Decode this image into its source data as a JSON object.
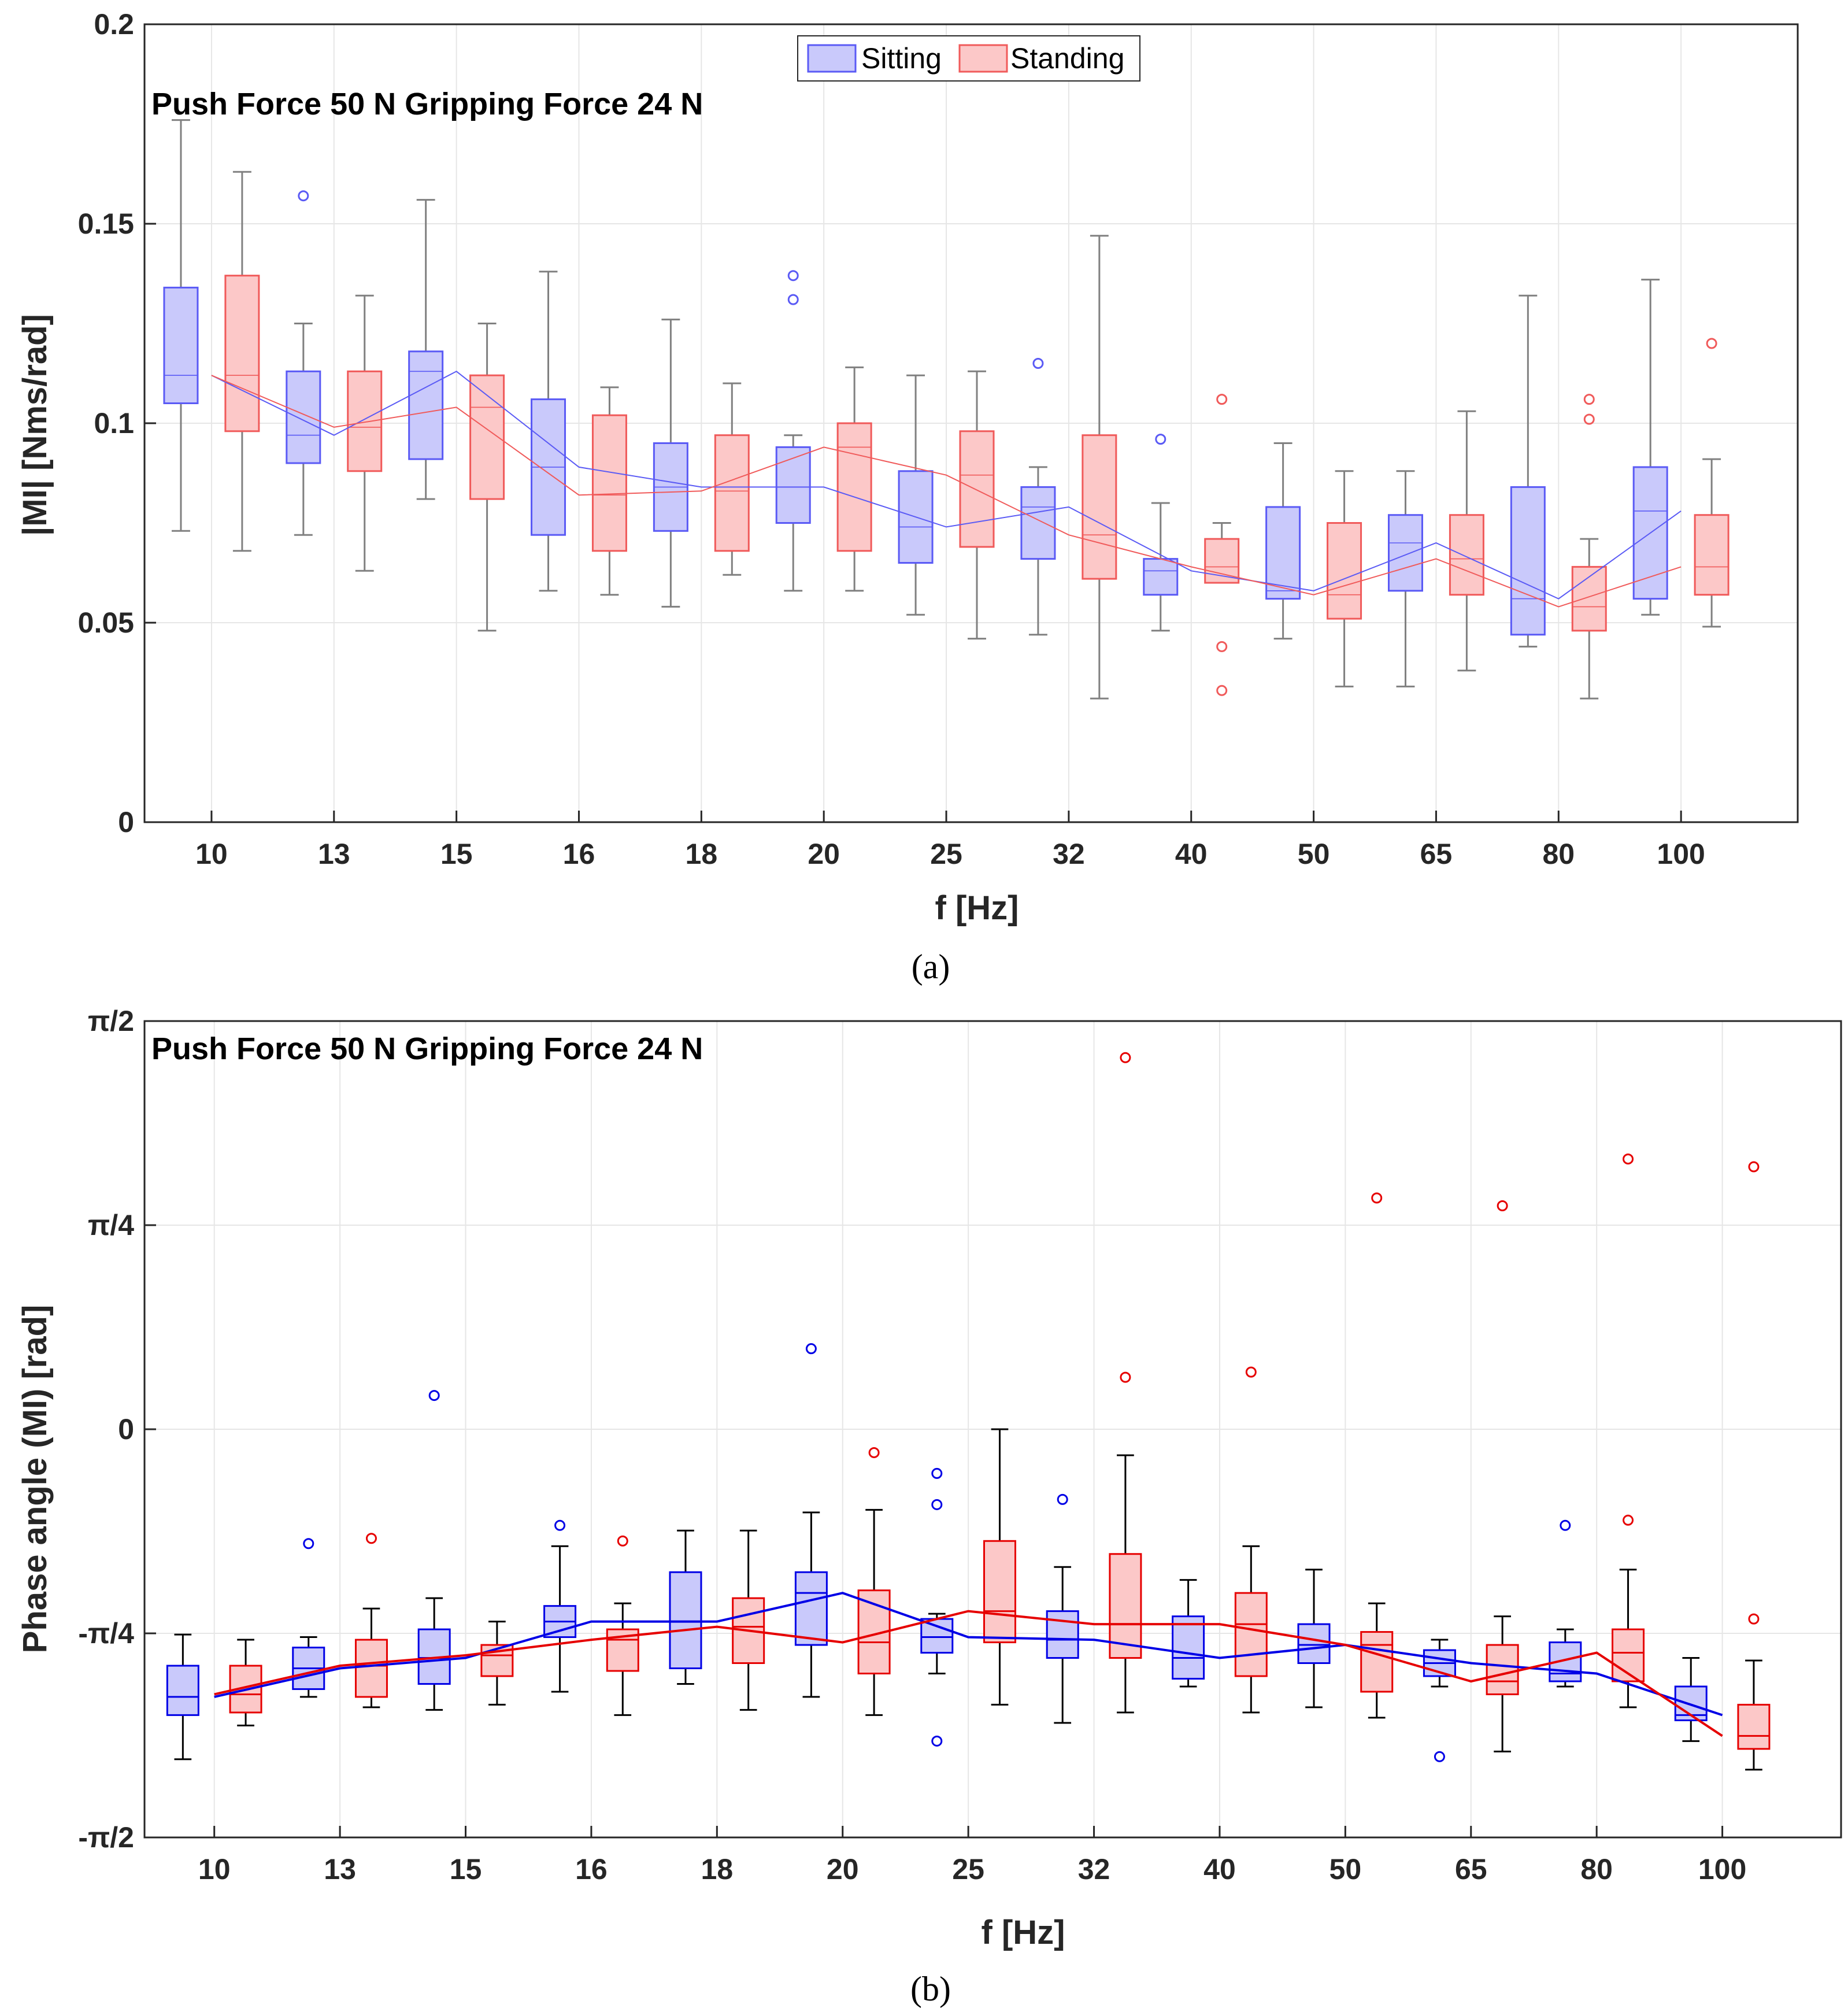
{
  "chart_data": [
    {
      "type": "box",
      "panel_caption": "(a)",
      "title": "Push Force 50 N Gripping Force 24 N",
      "xlabel": "f [Hz]",
      "ylabel": "|MI| [Nms/rad]",
      "ylim": [
        0,
        0.2
      ],
      "yticks": [
        0,
        0.05,
        0.1,
        0.15,
        0.2
      ],
      "ytick_labels": [
        "0",
        "0.05",
        "0.1",
        "0.15",
        "0.2"
      ],
      "categories": [
        "10",
        "13",
        "15",
        "16",
        "18",
        "20",
        "25",
        "32",
        "40",
        "50",
        "65",
        "80",
        "100"
      ],
      "grid": true,
      "legend": {
        "position": "top-center",
        "entries": [
          "Sitting",
          "Standing"
        ]
      },
      "series": [
        {
          "name": "Sitting",
          "color": "#5a5af5",
          "fill": "#c9c9fb",
          "whisker_color": "#808080",
          "boxes": [
            {
              "min": 0.073,
              "q1": 0.105,
              "median": 0.112,
              "q3": 0.134,
              "max": 0.176,
              "outliers": []
            },
            {
              "min": 0.072,
              "q1": 0.09,
              "median": 0.097,
              "q3": 0.113,
              "max": 0.125,
              "outliers": [
                0.157
              ]
            },
            {
              "min": 0.081,
              "q1": 0.091,
              "median": 0.113,
              "q3": 0.118,
              "max": 0.156,
              "outliers": []
            },
            {
              "min": 0.058,
              "q1": 0.072,
              "median": 0.089,
              "q3": 0.106,
              "max": 0.138,
              "outliers": []
            },
            {
              "min": 0.054,
              "q1": 0.073,
              "median": 0.084,
              "q3": 0.095,
              "max": 0.126,
              "outliers": []
            },
            {
              "min": 0.058,
              "q1": 0.075,
              "median": 0.084,
              "q3": 0.094,
              "max": 0.097,
              "outliers": [
                0.131,
                0.137
              ]
            },
            {
              "min": 0.052,
              "q1": 0.065,
              "median": 0.074,
              "q3": 0.088,
              "max": 0.112,
              "outliers": []
            },
            {
              "min": 0.047,
              "q1": 0.066,
              "median": 0.079,
              "q3": 0.084,
              "max": 0.089,
              "outliers": [
                0.115
              ]
            },
            {
              "min": 0.048,
              "q1": 0.057,
              "median": 0.063,
              "q3": 0.066,
              "max": 0.08,
              "outliers": [
                0.096
              ]
            },
            {
              "min": 0.046,
              "q1": 0.056,
              "median": 0.058,
              "q3": 0.079,
              "max": 0.095,
              "outliers": []
            },
            {
              "min": 0.034,
              "q1": 0.058,
              "median": 0.07,
              "q3": 0.077,
              "max": 0.088,
              "outliers": []
            },
            {
              "min": 0.044,
              "q1": 0.047,
              "median": 0.056,
              "q3": 0.084,
              "max": 0.132,
              "outliers": []
            },
            {
              "min": 0.052,
              "q1": 0.056,
              "median": 0.078,
              "q3": 0.089,
              "max": 0.136,
              "outliers": []
            }
          ]
        },
        {
          "name": "Standing",
          "color": "#f05a5a",
          "fill": "#fcc8c8",
          "whisker_color": "#808080",
          "boxes": [
            {
              "min": 0.068,
              "q1": 0.098,
              "median": 0.112,
              "q3": 0.137,
              "max": 0.163,
              "outliers": []
            },
            {
              "min": 0.063,
              "q1": 0.088,
              "median": 0.099,
              "q3": 0.113,
              "max": 0.132,
              "outliers": []
            },
            {
              "min": 0.048,
              "q1": 0.081,
              "median": 0.104,
              "q3": 0.112,
              "max": 0.125,
              "outliers": []
            },
            {
              "min": 0.057,
              "q1": 0.068,
              "median": 0.082,
              "q3": 0.102,
              "max": 0.109,
              "outliers": []
            },
            {
              "min": 0.062,
              "q1": 0.068,
              "median": 0.083,
              "q3": 0.097,
              "max": 0.11,
              "outliers": []
            },
            {
              "min": 0.058,
              "q1": 0.068,
              "median": 0.094,
              "q3": 0.1,
              "max": 0.114,
              "outliers": []
            },
            {
              "min": 0.046,
              "q1": 0.069,
              "median": 0.087,
              "q3": 0.098,
              "max": 0.113,
              "outliers": []
            },
            {
              "min": 0.031,
              "q1": 0.061,
              "median": 0.072,
              "q3": 0.097,
              "max": 0.147,
              "outliers": []
            },
            {
              "min": 0.06,
              "q1": 0.06,
              "median": 0.064,
              "q3": 0.071,
              "max": 0.075,
              "outliers": [
                0.106,
                0.044,
                0.033
              ]
            },
            {
              "min": 0.034,
              "q1": 0.051,
              "median": 0.057,
              "q3": 0.075,
              "max": 0.088,
              "outliers": []
            },
            {
              "min": 0.038,
              "q1": 0.057,
              "median": 0.066,
              "q3": 0.077,
              "max": 0.103,
              "outliers": []
            },
            {
              "min": 0.031,
              "q1": 0.048,
              "median": 0.054,
              "q3": 0.064,
              "max": 0.071,
              "outliers": [
                0.106,
                0.101
              ]
            },
            {
              "min": 0.049,
              "q1": 0.057,
              "median": 0.064,
              "q3": 0.077,
              "max": 0.091,
              "outliers": [
                0.12
              ]
            }
          ]
        }
      ]
    },
    {
      "type": "box",
      "panel_caption": "(b)",
      "title": "Push Force 50 N Gripping Force 24 N",
      "xlabel": "f [Hz]",
      "ylabel": "Phase angle (MI) [rad]",
      "ylim": [
        -1.5708,
        1.5708
      ],
      "yticks": [
        -1.5708,
        -0.7854,
        0,
        0.7854,
        1.5708
      ],
      "ytick_labels": [
        "-π/2",
        "-π/4",
        "0",
        "π/4",
        "π/2"
      ],
      "categories": [
        "10",
        "13",
        "15",
        "16",
        "18",
        "20",
        "25",
        "32",
        "40",
        "50",
        "65",
        "80",
        "100"
      ],
      "grid": true,
      "series": [
        {
          "name": "Sitting",
          "color": "#0000e6",
          "fill": "#c9c9fb",
          "whisker_color": "#000000",
          "boxes": [
            {
              "min": -1.27,
              "q1": -1.1,
              "median": -1.03,
              "q3": -0.91,
              "max": -0.79,
              "outliers": []
            },
            {
              "min": -1.03,
              "q1": -1.0,
              "median": -0.92,
              "q3": -0.84,
              "max": -0.8,
              "outliers": [
                -0.44
              ]
            },
            {
              "min": -1.08,
              "q1": -0.98,
              "median": -0.88,
              "q3": -0.77,
              "max": -0.65,
              "outliers": [
                0.13
              ]
            },
            {
              "min": -1.01,
              "q1": -0.8,
              "median": -0.74,
              "q3": -0.68,
              "max": -0.45,
              "outliers": [
                -0.37
              ]
            },
            {
              "min": -0.98,
              "q1": -0.92,
              "median": -0.74,
              "q3": -0.55,
              "max": -0.39,
              "outliers": []
            },
            {
              "min": -1.03,
              "q1": -0.83,
              "median": -0.63,
              "q3": -0.55,
              "max": -0.32,
              "outliers": [
                0.31
              ]
            },
            {
              "min": -0.94,
              "q1": -0.86,
              "median": -0.8,
              "q3": -0.73,
              "max": -0.71,
              "outliers": [
                -0.17,
                -0.29,
                -1.2
              ]
            },
            {
              "min": -1.13,
              "q1": -0.88,
              "median": -0.81,
              "q3": -0.7,
              "max": -0.53,
              "outliers": [
                -0.27
              ]
            },
            {
              "min": -0.99,
              "q1": -0.96,
              "median": -0.88,
              "q3": -0.72,
              "max": -0.58,
              "outliers": []
            },
            {
              "min": -1.07,
              "q1": -0.9,
              "median": -0.83,
              "q3": -0.75,
              "max": -0.54,
              "outliers": []
            },
            {
              "min": -0.99,
              "q1": -0.95,
              "median": -0.9,
              "q3": -0.85,
              "max": -0.81,
              "outliers": [
                -1.26
              ]
            },
            {
              "min": -0.99,
              "q1": -0.97,
              "median": -0.94,
              "q3": -0.82,
              "max": -0.77,
              "outliers": [
                -0.37
              ]
            },
            {
              "min": -1.2,
              "q1": -1.12,
              "median": -1.1,
              "q3": -0.99,
              "max": -0.88,
              "outliers": []
            }
          ]
        },
        {
          "name": "Standing",
          "color": "#e60000",
          "fill": "#fcc8c8",
          "whisker_color": "#000000",
          "boxes": [
            {
              "min": -1.14,
              "q1": -1.09,
              "median": -1.02,
              "q3": -0.91,
              "max": -0.81,
              "outliers": []
            },
            {
              "min": -1.07,
              "q1": -1.03,
              "median": -0.91,
              "q3": -0.81,
              "max": -0.69,
              "outliers": [
                -0.42
              ]
            },
            {
              "min": -1.06,
              "q1": -0.95,
              "median": -0.87,
              "q3": -0.83,
              "max": -0.74,
              "outliers": []
            },
            {
              "min": -1.1,
              "q1": -0.93,
              "median": -0.81,
              "q3": -0.77,
              "max": -0.67,
              "outliers": [
                -0.43
              ]
            },
            {
              "min": -1.08,
              "q1": -0.9,
              "median": -0.76,
              "q3": -0.65,
              "max": -0.39,
              "outliers": []
            },
            {
              "min": -1.1,
              "q1": -0.94,
              "median": -0.82,
              "q3": -0.62,
              "max": -0.31,
              "outliers": [
                -0.09
              ]
            },
            {
              "min": -1.06,
              "q1": -0.82,
              "median": -0.7,
              "q3": -0.43,
              "max": 0.0,
              "outliers": []
            },
            {
              "min": -1.09,
              "q1": -0.88,
              "median": -0.75,
              "q3": -0.48,
              "max": -0.1,
              "outliers": [
                1.43,
                0.2
              ]
            },
            {
              "min": -1.09,
              "q1": -0.95,
              "median": -0.75,
              "q3": -0.63,
              "max": -0.45,
              "outliers": [
                0.22
              ]
            },
            {
              "min": -1.11,
              "q1": -1.01,
              "median": -0.83,
              "q3": -0.78,
              "max": -0.67,
              "outliers": [
                0.89
              ]
            },
            {
              "min": -1.24,
              "q1": -1.02,
              "median": -0.97,
              "q3": -0.83,
              "max": -0.72,
              "outliers": [
                0.86
              ]
            },
            {
              "min": -1.07,
              "q1": -0.97,
              "median": -0.86,
              "q3": -0.77,
              "max": -0.54,
              "outliers": [
                1.04,
                -0.35
              ]
            },
            {
              "min": -1.31,
              "q1": -1.23,
              "median": -1.18,
              "q3": -1.06,
              "max": -0.89,
              "outliers": [
                1.01,
                -0.73
              ]
            }
          ]
        }
      ]
    }
  ]
}
